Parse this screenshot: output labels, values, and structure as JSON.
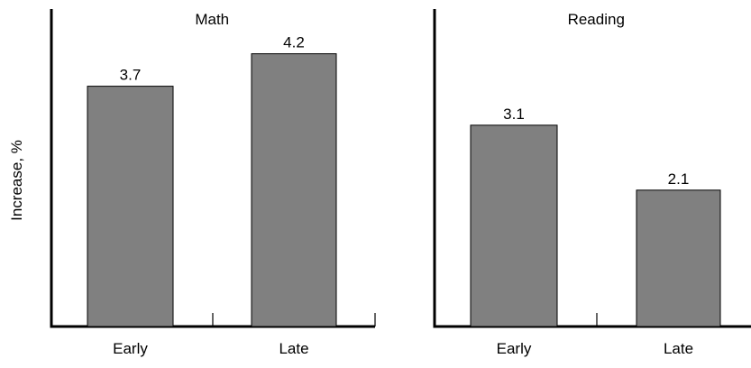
{
  "chart_data": {
    "type": "bar",
    "ylabel": "Increase, %",
    "ylim": [
      0,
      5
    ],
    "bar_color": "#808080",
    "panels": [
      {
        "title": "Math",
        "categories": [
          "Early",
          "Late"
        ],
        "values": [
          3.7,
          4.2
        ],
        "value_labels": [
          "3.7",
          "4.2"
        ]
      },
      {
        "title": "Reading",
        "categories": [
          "Early",
          "Late"
        ],
        "values": [
          3.1,
          2.1
        ],
        "value_labels": [
          "3.1",
          "2.1"
        ]
      }
    ]
  }
}
